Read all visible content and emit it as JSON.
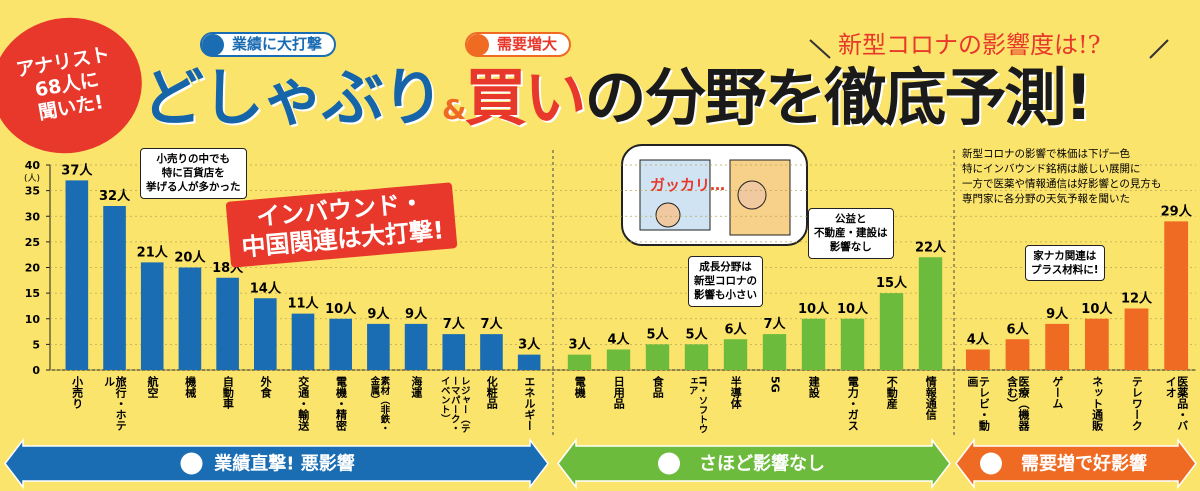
{
  "chart_data": {
    "type": "bar",
    "badge": [
      "アナリスト",
      "68人に",
      "聞いた!"
    ],
    "kicker_left": "業績に大打撃",
    "kicker_right": "需要増大",
    "title_parts": [
      "どしゃぶり",
      "&",
      "買い",
      "の分野を徹底予測!"
    ],
    "subtitle": "新型コロナの影響度は!?",
    "description": [
      "新型コロナの影響で株価は下げ一色",
      "特にインバウンド銘柄は厳しい展開に",
      "一方で医薬や情報通信は好影響との見方も",
      "専門家に各分野の天気予報を聞いた"
    ],
    "y_unit": "(人)",
    "ylim": [
      0,
      40
    ],
    "yticks": [
      0,
      5,
      10,
      15,
      20,
      25,
      30,
      35,
      40
    ],
    "grid": true,
    "series": [
      {
        "name": "業績直撃! 悪影響",
        "color": "#1b6db3",
        "categories": [
          "小売り",
          "旅行・ホテル",
          "航空",
          "機械",
          "自動車",
          "外食",
          "交通・輸送",
          "電機・精密",
          "素材（非鉄・金属）",
          "海運",
          "レジャー（テーマパーク・イベント）",
          "化粧品",
          "エネルギー"
        ],
        "values": [
          37,
          32,
          21,
          20,
          18,
          14,
          11,
          10,
          9,
          9,
          7,
          7,
          3
        ],
        "value_labels": [
          "37人",
          "32人",
          "21人",
          "20人",
          "18人",
          "14人",
          "11人",
          "10人",
          "9人",
          "9人",
          "7人",
          "7人",
          "3人"
        ]
      },
      {
        "name": "さほど影響なし",
        "color": "#6cbb3c",
        "categories": [
          "電機",
          "日用品",
          "食品",
          "IT・ソフトウェア",
          "半導体",
          "5G",
          "建設",
          "電力・ガス",
          "不動産",
          "情報通信"
        ],
        "values": [
          3,
          4,
          5,
          5,
          6,
          7,
          10,
          10,
          15,
          22
        ],
        "value_labels": [
          "3人",
          "4人",
          "5人",
          "5人",
          "6人",
          "7人",
          "10人",
          "10人",
          "15人",
          "22人"
        ]
      },
      {
        "name": "需要増で好影響",
        "color": "#ef6a22",
        "categories": [
          "テレビ・動画",
          "医療（機器含む）",
          "ゲーム",
          "ネット通販",
          "テレワーク",
          "医薬品・バイオ"
        ],
        "values": [
          4,
          6,
          9,
          10,
          12,
          29
        ],
        "value_labels": [
          "4人",
          "6人",
          "9人",
          "10人",
          "12人",
          "29人"
        ]
      }
    ],
    "annotations": [
      {
        "lines": [
          "小売りの中でも",
          "特に百貨店を",
          "挙げる人が多かった"
        ]
      },
      {
        "lines": [
          "インバウンド・",
          "中国関連は大打撃!"
        ]
      },
      {
        "lines": [
          "成長分野は",
          "新型コロナの",
          "影響も小さい"
        ]
      },
      {
        "lines": [
          "公益と",
          "不動産・建設は",
          "影響なし"
        ]
      },
      {
        "lines": [
          "家ナカ関連は",
          "プラス材料に!"
        ]
      }
    ],
    "illustration_text": "ガッカリ…"
  }
}
